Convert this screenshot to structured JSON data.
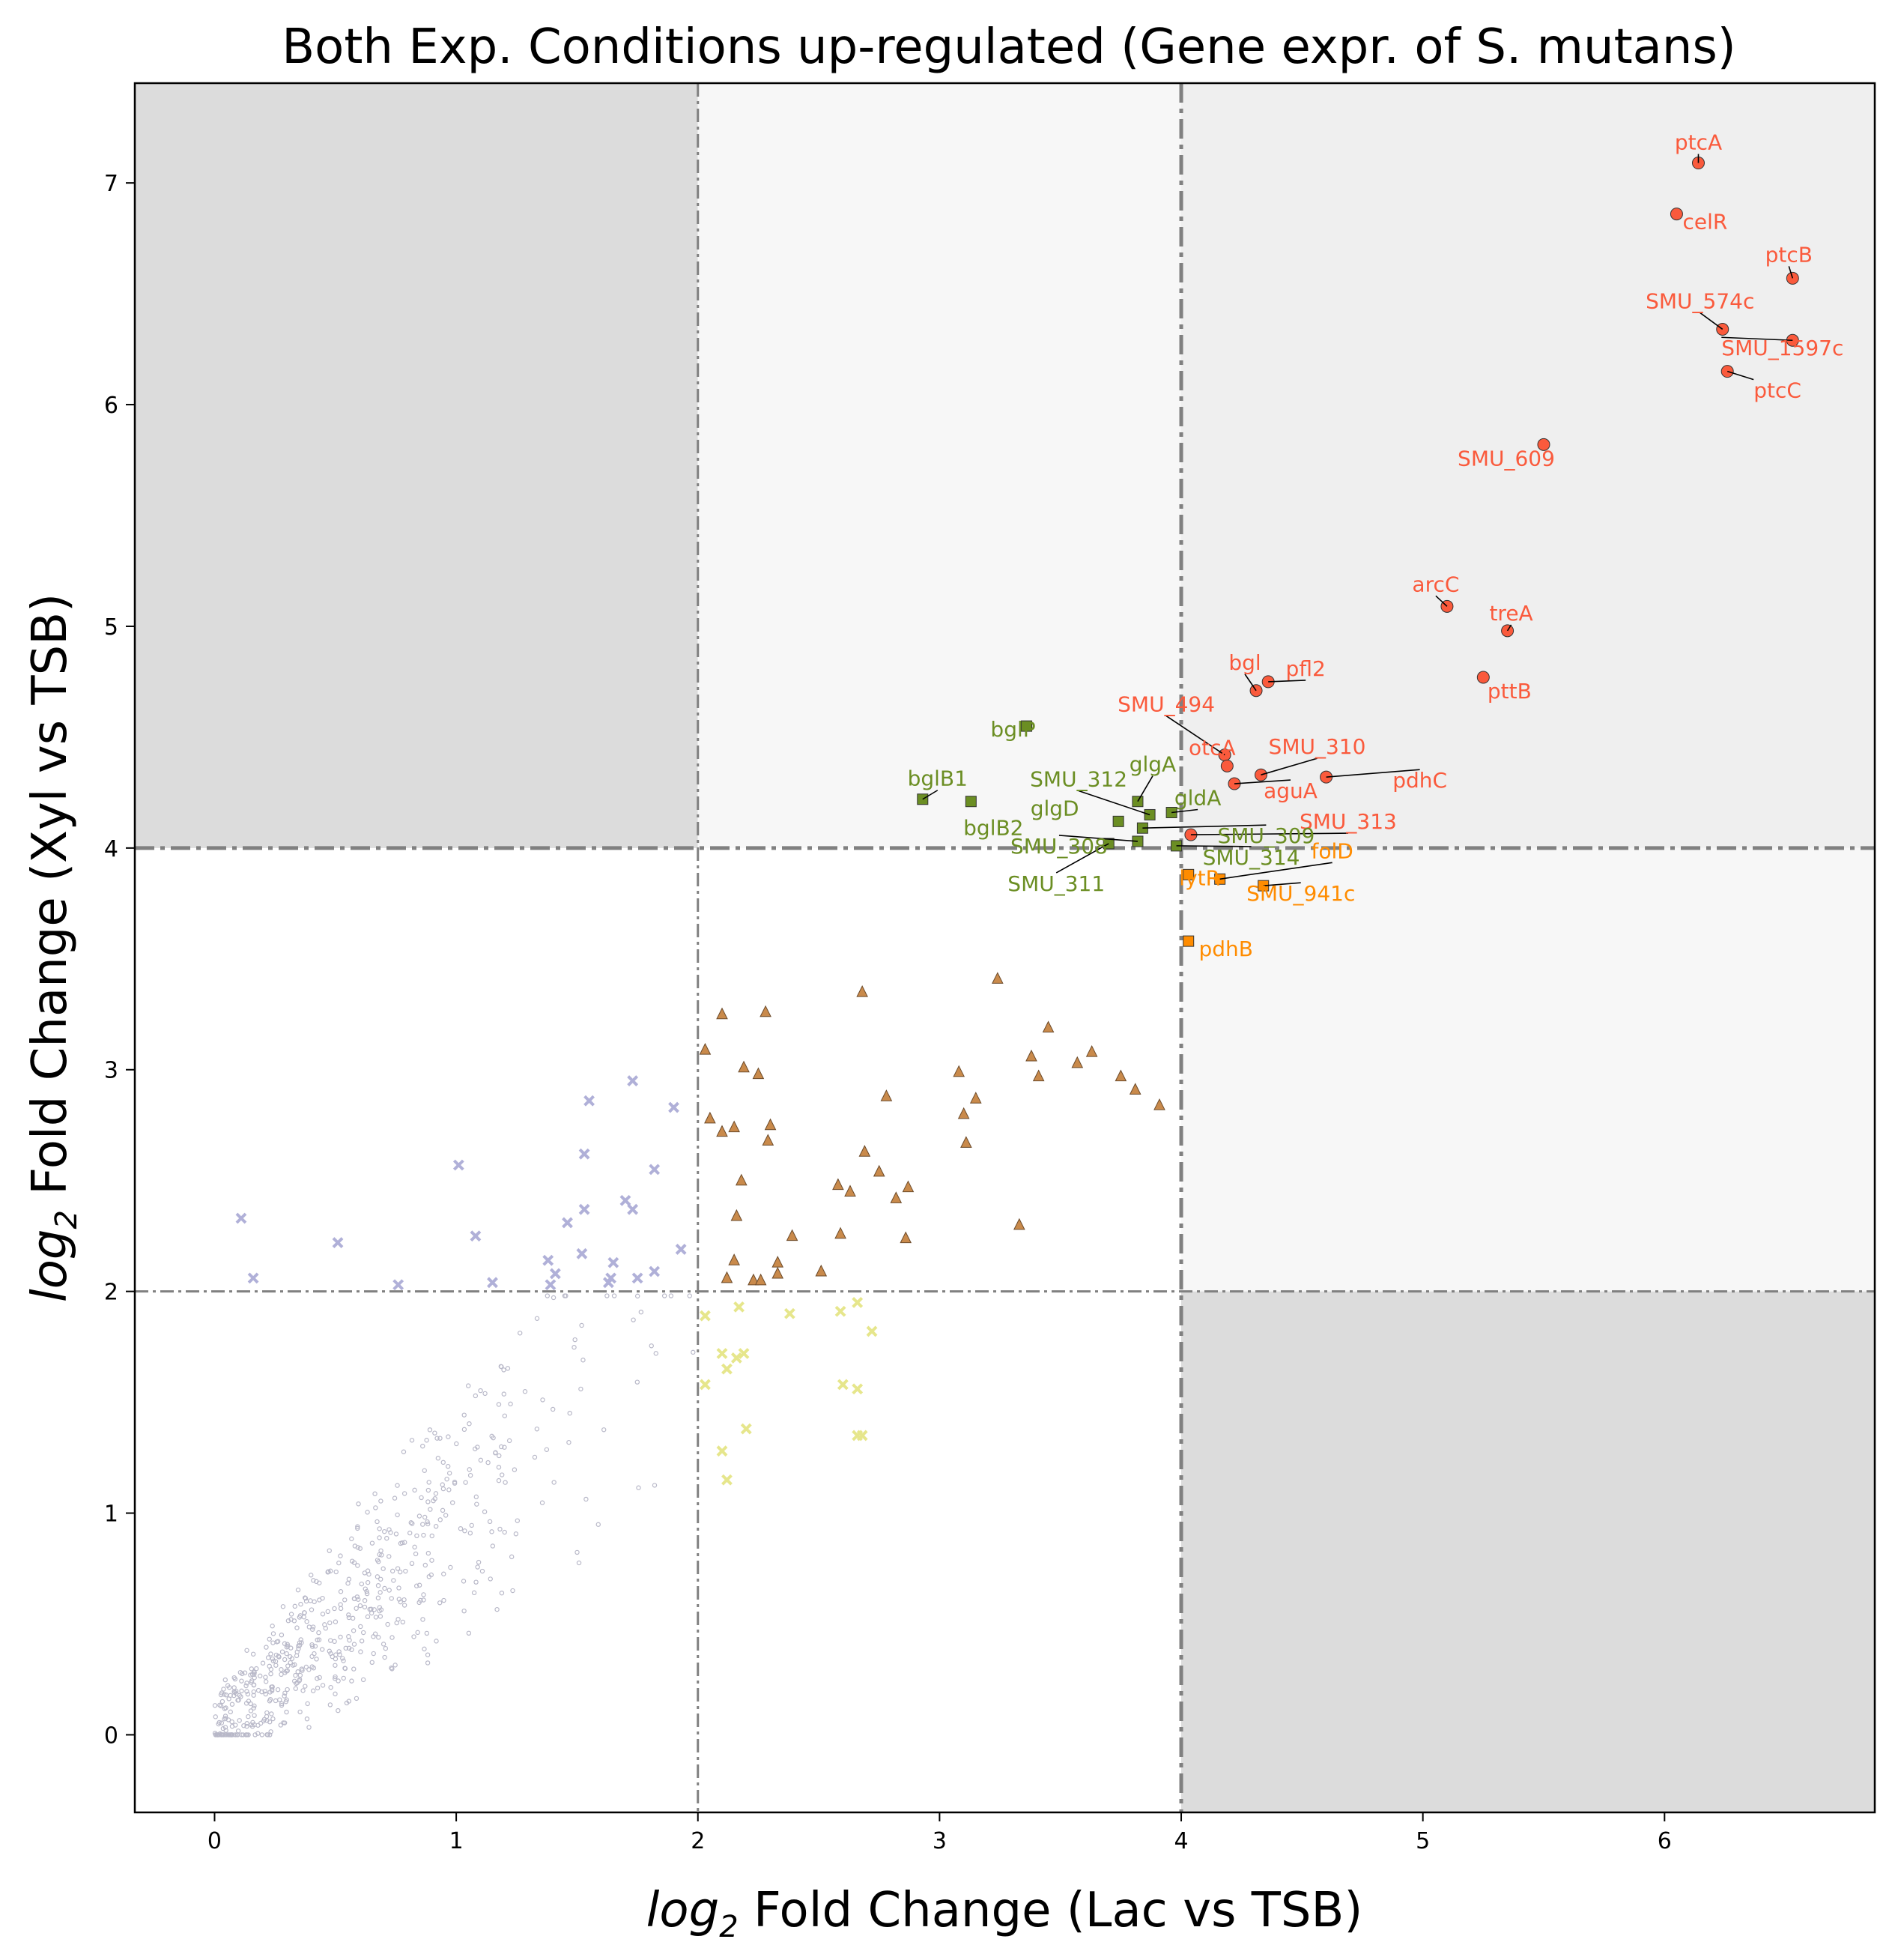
{
  "chart_data": {
    "type": "scatter",
    "title": "Both Exp. Conditions up-regulated (Gene expr. of S. mutans)",
    "xlabel_prefix": "log",
    "xlabel_sub": "2",
    "xlabel_rest": " Fold Change (Lac vs TSB)",
    "ylabel_prefix": "log",
    "ylabel_sub": "2",
    "ylabel_rest": " Fold Change (Xyl vs TSB)",
    "xlim": [
      -0.33,
      6.87
    ],
    "ylim": [
      -0.35,
      7.45
    ],
    "xticks": [
      0,
      1,
      2,
      3,
      4,
      5,
      6
    ],
    "yticks": [
      0,
      1,
      2,
      3,
      4,
      5,
      6,
      7
    ],
    "grid": false,
    "thresholds": {
      "x_low": 2,
      "x_high": 4,
      "y_low": 2,
      "y_high": 4
    },
    "regions": [
      {
        "x": [
          -0.33,
          2
        ],
        "y": [
          4,
          7.45
        ],
        "color": "#dcdcdc"
      },
      {
        "x": [
          4,
          6.87
        ],
        "y": [
          -0.35,
          2
        ],
        "color": "#dcdcdc"
      },
      {
        "x": [
          2,
          4
        ],
        "y": [
          4,
          7.45
        ],
        "color": "#f7f7f7"
      },
      {
        "x": [
          4,
          6.87
        ],
        "y": [
          2,
          4
        ],
        "color": "#f7f7f7"
      },
      {
        "x": [
          4,
          6.87
        ],
        "y": [
          4,
          7.45
        ],
        "color": "#efefef"
      }
    ],
    "colors": {
      "red": "#fa5a3c",
      "green": "#6b8e23",
      "orange": "#ff8c00",
      "brown": "#c98a4b",
      "yellow": "#e6e68c",
      "lavender": "#b0b0d8",
      "grey": "#b8b8c8",
      "threshold": "#808080"
    },
    "series": [
      {
        "group": "both-strong",
        "color": "#fa5a3c",
        "marker": "circle",
        "points": [
          {
            "x": 6.14,
            "y": 7.09,
            "label": "ptcA"
          },
          {
            "x": 6.05,
            "y": 6.86,
            "label": "celR"
          },
          {
            "x": 6.53,
            "y": 6.57,
            "label": "ptcB"
          },
          {
            "x": 6.24,
            "y": 6.34,
            "label": "SMU_574c"
          },
          {
            "x": 6.53,
            "y": 6.29,
            "label": "SMU_1597c"
          },
          {
            "x": 6.26,
            "y": 6.15,
            "label": "ptcC"
          },
          {
            "x": 5.5,
            "y": 5.82,
            "label": "SMU_609"
          },
          {
            "x": 5.1,
            "y": 5.09,
            "label": "arcC"
          },
          {
            "x": 5.35,
            "y": 4.98,
            "label": "treA"
          },
          {
            "x": 5.25,
            "y": 4.77,
            "label": "pttB"
          },
          {
            "x": 4.31,
            "y": 4.71,
            "label": "bgl"
          },
          {
            "x": 4.36,
            "y": 4.75,
            "label": "pfl2"
          },
          {
            "x": 4.18,
            "y": 4.42,
            "label": "SMU_494"
          },
          {
            "x": 4.19,
            "y": 4.37,
            "label": "otcA"
          },
          {
            "x": 4.33,
            "y": 4.33,
            "label": "SMU_310"
          },
          {
            "x": 4.22,
            "y": 4.29,
            "label": "aguA"
          },
          {
            "x": 4.6,
            "y": 4.32,
            "label": "pdhC"
          },
          {
            "x": 4.04,
            "y": 4.06,
            "label": "SMU_313"
          }
        ]
      },
      {
        "group": "xyl-strong-lac-moderate",
        "color": "#6b8e23",
        "marker": "square",
        "points": [
          {
            "x": 3.36,
            "y": 4.55,
            "label": "bglP"
          },
          {
            "x": 2.93,
            "y": 4.22,
            "label": "bglB1"
          },
          {
            "x": 3.13,
            "y": 4.21,
            "label": "bglB2"
          },
          {
            "x": 3.82,
            "y": 4.21,
            "label": "glgA"
          },
          {
            "x": 3.87,
            "y": 4.15,
            "label": "SMU_312"
          },
          {
            "x": 3.96,
            "y": 4.16,
            "label": "gldA"
          },
          {
            "x": 3.74,
            "y": 4.12,
            "label": "glgD"
          },
          {
            "x": 3.84,
            "y": 4.09,
            "label": "SMU_309"
          },
          {
            "x": 3.82,
            "y": 4.03,
            "label": "SMU_308"
          },
          {
            "x": 3.98,
            "y": 4.01,
            "label": "SMU_314"
          },
          {
            "x": 3.7,
            "y": 4.02,
            "label": "SMU_311"
          }
        ]
      },
      {
        "group": "lac-strong-xyl-moderate",
        "color": "#ff8c00",
        "marker": "square",
        "points": [
          {
            "x": 4.03,
            "y": 3.88,
            "label": "lytR"
          },
          {
            "x": 4.16,
            "y": 3.86,
            "label": "folD"
          },
          {
            "x": 4.34,
            "y": 3.83,
            "label": "SMU_941c"
          },
          {
            "x": 4.03,
            "y": 3.58,
            "label": "pdhB"
          }
        ]
      },
      {
        "group": "both-moderate",
        "color": "#c98a4b",
        "marker": "triangle",
        "points": [
          {
            "x": 2.03,
            "y": 3.09
          },
          {
            "x": 2.1,
            "y": 3.25
          },
          {
            "x": 2.28,
            "y": 3.26
          },
          {
            "x": 2.68,
            "y": 3.35
          },
          {
            "x": 3.24,
            "y": 3.41
          },
          {
            "x": 3.45,
            "y": 3.19
          },
          {
            "x": 3.38,
            "y": 3.06
          },
          {
            "x": 3.57,
            "y": 3.03
          },
          {
            "x": 3.63,
            "y": 3.08
          },
          {
            "x": 3.41,
            "y": 2.97
          },
          {
            "x": 3.08,
            "y": 2.99
          },
          {
            "x": 3.75,
            "y": 2.97
          },
          {
            "x": 3.81,
            "y": 2.91
          },
          {
            "x": 3.91,
            "y": 2.84
          },
          {
            "x": 3.15,
            "y": 2.87
          },
          {
            "x": 3.1,
            "y": 2.8
          },
          {
            "x": 2.19,
            "y": 3.01
          },
          {
            "x": 2.25,
            "y": 2.98
          },
          {
            "x": 2.78,
            "y": 2.88
          },
          {
            "x": 2.05,
            "y": 2.78
          },
          {
            "x": 2.1,
            "y": 2.72
          },
          {
            "x": 2.15,
            "y": 2.74
          },
          {
            "x": 2.3,
            "y": 2.75
          },
          {
            "x": 2.29,
            "y": 2.68
          },
          {
            "x": 3.11,
            "y": 2.67
          },
          {
            "x": 2.69,
            "y": 2.63
          },
          {
            "x": 2.75,
            "y": 2.54
          },
          {
            "x": 2.18,
            "y": 2.5
          },
          {
            "x": 2.58,
            "y": 2.48
          },
          {
            "x": 2.63,
            "y": 2.45
          },
          {
            "x": 2.87,
            "y": 2.47
          },
          {
            "x": 2.82,
            "y": 2.42
          },
          {
            "x": 2.16,
            "y": 2.34
          },
          {
            "x": 3.33,
            "y": 2.3
          },
          {
            "x": 2.59,
            "y": 2.26
          },
          {
            "x": 2.39,
            "y": 2.25
          },
          {
            "x": 2.86,
            "y": 2.24
          },
          {
            "x": 2.15,
            "y": 2.14
          },
          {
            "x": 2.33,
            "y": 2.13
          },
          {
            "x": 2.51,
            "y": 2.09
          },
          {
            "x": 2.12,
            "y": 2.06
          },
          {
            "x": 2.23,
            "y": 2.05
          },
          {
            "x": 2.26,
            "y": 2.05
          },
          {
            "x": 2.33,
            "y": 2.08
          }
        ]
      },
      {
        "group": "lac-moderate-only",
        "color": "#e6e68c",
        "marker": "cross",
        "points": [
          {
            "x": 2.03,
            "y": 1.89
          },
          {
            "x": 2.17,
            "y": 1.93
          },
          {
            "x": 2.38,
            "y": 1.9
          },
          {
            "x": 2.59,
            "y": 1.91
          },
          {
            "x": 2.66,
            "y": 1.95
          },
          {
            "x": 2.72,
            "y": 1.82
          },
          {
            "x": 2.1,
            "y": 1.72
          },
          {
            "x": 2.16,
            "y": 1.7
          },
          {
            "x": 2.19,
            "y": 1.72
          },
          {
            "x": 2.12,
            "y": 1.65
          },
          {
            "x": 2.03,
            "y": 1.58
          },
          {
            "x": 2.6,
            "y": 1.58
          },
          {
            "x": 2.66,
            "y": 1.56
          },
          {
            "x": 2.2,
            "y": 1.38
          },
          {
            "x": 2.66,
            "y": 1.35
          },
          {
            "x": 2.68,
            "y": 1.35
          },
          {
            "x": 2.1,
            "y": 1.28
          },
          {
            "x": 2.12,
            "y": 1.15
          }
        ]
      },
      {
        "group": "xyl-moderate-only",
        "color": "#b0b0d8",
        "marker": "cross",
        "points": [
          {
            "x": 1.55,
            "y": 2.86
          },
          {
            "x": 1.73,
            "y": 2.95
          },
          {
            "x": 1.9,
            "y": 2.83
          },
          {
            "x": 1.53,
            "y": 2.62
          },
          {
            "x": 1.01,
            "y": 2.57
          },
          {
            "x": 1.82,
            "y": 2.55
          },
          {
            "x": 1.7,
            "y": 2.41
          },
          {
            "x": 1.73,
            "y": 2.37
          },
          {
            "x": 1.53,
            "y": 2.37
          },
          {
            "x": 1.46,
            "y": 2.31
          },
          {
            "x": 0.11,
            "y": 2.33
          },
          {
            "x": 1.08,
            "y": 2.25
          },
          {
            "x": 0.51,
            "y": 2.22
          },
          {
            "x": 1.93,
            "y": 2.19
          },
          {
            "x": 1.52,
            "y": 2.17
          },
          {
            "x": 1.38,
            "y": 2.14
          },
          {
            "x": 1.65,
            "y": 2.13
          },
          {
            "x": 1.82,
            "y": 2.09
          },
          {
            "x": 1.41,
            "y": 2.08
          },
          {
            "x": 1.75,
            "y": 2.06
          },
          {
            "x": 0.16,
            "y": 2.06
          },
          {
            "x": 1.64,
            "y": 2.06
          },
          {
            "x": 1.63,
            "y": 2.04
          },
          {
            "x": 1.15,
            "y": 2.04
          },
          {
            "x": 0.76,
            "y": 2.03
          },
          {
            "x": 1.39,
            "y": 2.03
          }
        ]
      },
      {
        "group": "not-significant",
        "color": "#b8b8c8",
        "marker": "dot",
        "generated": {
          "count": 620,
          "seed": 7,
          "x_range": [
            0,
            2
          ],
          "y_range": [
            0,
            2
          ]
        }
      }
    ]
  }
}
